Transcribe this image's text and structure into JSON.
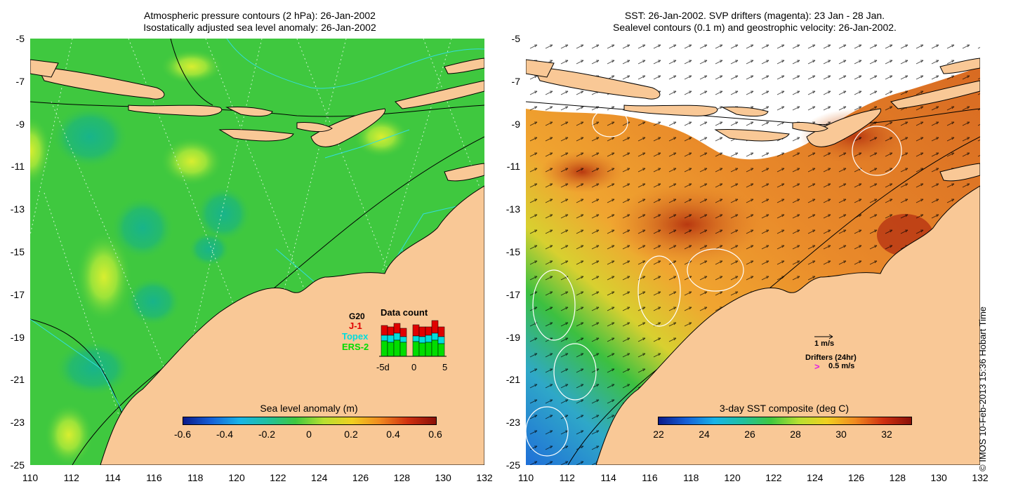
{
  "left": {
    "title_line1": "Atmospheric pressure contours (2 hPa): 26-Jan-2002",
    "title_line2": "Isostatically adjusted sea level anomaly: 26-Jan-2002",
    "colorbar_title": "Sea level anomaly (m)",
    "colorbar_ticks": [
      "-0.6",
      "-0.4",
      "-0.2",
      "0",
      "0.2",
      "0.4",
      "0.6"
    ],
    "data_count": {
      "title": "Data count",
      "series_labels": [
        "G20",
        "J-1",
        "Topex",
        "ERS-2"
      ],
      "series_colors": [
        "#000000",
        "#e00000",
        "#00e0e0",
        "#00dd00"
      ],
      "axis_ticks": [
        "-5d",
        "0",
        "5"
      ]
    }
  },
  "right": {
    "title_line1": "SST: 26-Jan-2002. SVP drifters (magenta): 23 Jan - 28 Jan.",
    "title_line2": "Sealevel contours (0.1 m) and geostrophic velocity: 26-Jan-2002.",
    "colorbar_title": "3-day SST composite (deg C)",
    "colorbar_ticks": [
      "22",
      "24",
      "26",
      "28",
      "30",
      "32"
    ],
    "velocity_scale": "1 m/s",
    "drifters_label": "Drifters (24hr)",
    "drifter_scale": "0.5 m/s",
    "credit": "© IMOS 10-Feb-2013 15:36 Hobart Time"
  },
  "axes": {
    "lon_ticks": [
      "110",
      "112",
      "114",
      "116",
      "118",
      "120",
      "122",
      "124",
      "126",
      "128",
      "130",
      "132"
    ],
    "lat_ticks": [
      "-5",
      "-7",
      "-9",
      "-11",
      "-13",
      "-15",
      "-17",
      "-19",
      "-21",
      "-23",
      "-25"
    ]
  },
  "colors": {
    "land": "#f9c896",
    "sla_background": "#3fc83f",
    "sla_light": "#8ee03a",
    "sla_dark": "#22b86a",
    "sst_orange": "#e98a2a",
    "sst_red": "#c8451a",
    "sst_yellow": "#f5c430",
    "sst_blue": "#2a8be0"
  }
}
